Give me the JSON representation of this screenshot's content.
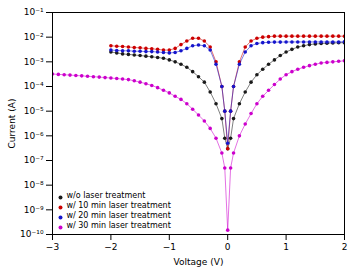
{
  "chart_data": {
    "type": "line",
    "xlabel": "Voltage (V)",
    "ylabel": "Current (A)",
    "xlim": [
      -3,
      2
    ],
    "ylim": [
      1e-10,
      0.1
    ],
    "xticks": [
      -3,
      -2,
      -1,
      0,
      1,
      2
    ],
    "yticks": [
      {
        "value": 1e-10,
        "label": "10⁻¹⁰"
      },
      {
        "value": 1e-09,
        "label": "10⁻⁹"
      },
      {
        "value": 1e-08,
        "label": "10⁻⁸"
      },
      {
        "value": 1e-07,
        "label": "10⁻⁷"
      },
      {
        "value": 1e-06,
        "label": "10⁻⁶"
      },
      {
        "value": 1e-05,
        "label": "10⁻⁵"
      },
      {
        "value": 0.0001,
        "label": "10⁻⁴"
      },
      {
        "value": 0.001,
        "label": "10⁻³"
      },
      {
        "value": 0.01,
        "label": "10⁻²"
      },
      {
        "value": 0.1,
        "label": "10⁻¹"
      }
    ],
    "log": "y",
    "grid": false,
    "legend": "lower left",
    "marker": "o",
    "line_style": "-",
    "series": [
      {
        "name": "w/o laser treatment",
        "color": "#1a1a1a",
        "x": [
          -2.0,
          -1.9,
          -1.8,
          -1.7,
          -1.6,
          -1.5,
          -1.4,
          -1.3,
          -1.2,
          -1.1,
          -1.0,
          -0.9,
          -0.8,
          -0.7,
          -0.6,
          -0.5,
          -0.4,
          -0.3,
          -0.2,
          -0.1,
          -0.05,
          0.0,
          0.05,
          0.1,
          0.2,
          0.3,
          0.4,
          0.5,
          0.6,
          0.7,
          0.8,
          0.9,
          1.0,
          1.1,
          1.2,
          1.3,
          1.4,
          1.5,
          1.6,
          1.7,
          1.8,
          1.9,
          2.0
        ],
        "values": [
          0.0025,
          0.0023,
          0.0021,
          0.002,
          0.0019,
          0.0018,
          0.0017,
          0.0016,
          0.0015,
          0.0014,
          0.0012,
          0.001,
          0.0008,
          0.0006,
          0.0004,
          0.00025,
          0.00015,
          6e-05,
          2e-05,
          5e-06,
          8e-07,
          3e-07,
          8e-07,
          5e-06,
          2e-05,
          6e-05,
          0.00015,
          0.0003,
          0.0005,
          0.0008,
          0.0012,
          0.0018,
          0.0025,
          0.0032,
          0.004,
          0.0045,
          0.005,
          0.0053,
          0.0055,
          0.0057,
          0.0058,
          0.0059,
          0.006
        ]
      },
      {
        "name": "w/ 10 min laser treatment",
        "color": "#cc0000",
        "x": [
          -2.0,
          -1.9,
          -1.8,
          -1.7,
          -1.6,
          -1.5,
          -1.4,
          -1.3,
          -1.2,
          -1.1,
          -1.0,
          -0.9,
          -0.8,
          -0.7,
          -0.6,
          -0.5,
          -0.4,
          -0.3,
          -0.2,
          -0.1,
          -0.05,
          0.0,
          0.05,
          0.1,
          0.2,
          0.3,
          0.4,
          0.5,
          0.6,
          0.7,
          0.8,
          0.9,
          1.0,
          1.1,
          1.2,
          1.3,
          1.4,
          1.5,
          1.6,
          1.7,
          1.8,
          1.9,
          2.0
        ],
        "values": [
          0.0045,
          0.0043,
          0.0042,
          0.004,
          0.0038,
          0.0037,
          0.0035,
          0.0034,
          0.0032,
          0.003,
          0.003,
          0.0035,
          0.005,
          0.007,
          0.009,
          0.009,
          0.007,
          0.004,
          0.001,
          0.0001,
          1e-05,
          3e-07,
          1e-05,
          0.0001,
          0.001,
          0.004,
          0.007,
          0.009,
          0.01,
          0.0105,
          0.011,
          0.011,
          0.011,
          0.011,
          0.011,
          0.011,
          0.011,
          0.011,
          0.011,
          0.011,
          0.011,
          0.011,
          0.011
        ]
      },
      {
        "name": "w/ 20 min laser treatment",
        "color": "#1515cc",
        "x": [
          -2.0,
          -1.9,
          -1.8,
          -1.7,
          -1.6,
          -1.5,
          -1.4,
          -1.3,
          -1.2,
          -1.1,
          -1.0,
          -0.9,
          -0.8,
          -0.7,
          -0.6,
          -0.5,
          -0.4,
          -0.3,
          -0.2,
          -0.1,
          -0.05,
          0.0,
          0.05,
          0.1,
          0.2,
          0.3,
          0.4,
          0.5,
          0.6,
          0.7,
          0.8,
          0.9,
          1.0,
          1.1,
          1.2,
          1.3,
          1.4,
          1.5,
          1.6,
          1.7,
          1.8,
          1.9,
          2.0
        ],
        "values": [
          0.003,
          0.0029,
          0.0028,
          0.0028,
          0.0027,
          0.0027,
          0.0026,
          0.0026,
          0.0025,
          0.0024,
          0.0023,
          0.0024,
          0.0028,
          0.0035,
          0.0045,
          0.0048,
          0.0045,
          0.003,
          0.0008,
          0.0001,
          1e-05,
          5e-07,
          1e-05,
          0.0001,
          0.0008,
          0.0025,
          0.0045,
          0.0055,
          0.006,
          0.0062,
          0.0063,
          0.0063,
          0.0064,
          0.0064,
          0.0064,
          0.0064,
          0.0064,
          0.0064,
          0.0064,
          0.0064,
          0.0064,
          0.0064,
          0.0065
        ]
      },
      {
        "name": "w/ 30 min laser treatment",
        "color": "#cc00cc",
        "x": [
          -3.0,
          -2.9,
          -2.8,
          -2.7,
          -2.6,
          -2.5,
          -2.4,
          -2.3,
          -2.2,
          -2.1,
          -2.0,
          -1.9,
          -1.8,
          -1.7,
          -1.6,
          -1.5,
          -1.4,
          -1.3,
          -1.2,
          -1.1,
          -1.0,
          -0.9,
          -0.8,
          -0.7,
          -0.6,
          -0.5,
          -0.4,
          -0.3,
          -0.2,
          -0.1,
          -0.05,
          0.0,
          0.05,
          0.1,
          0.2,
          0.3,
          0.4,
          0.5,
          0.6,
          0.7,
          0.8,
          0.9,
          1.0,
          1.1,
          1.2,
          1.3,
          1.4,
          1.5,
          1.6,
          1.7,
          1.8,
          1.9,
          2.0
        ],
        "values": [
          0.00032,
          0.00031,
          0.0003,
          0.00029,
          0.00028,
          0.00027,
          0.00026,
          0.00025,
          0.00024,
          0.00023,
          0.00022,
          0.00021,
          0.0002,
          0.00019,
          0.00017,
          0.00015,
          0.00013,
          0.00011,
          9e-05,
          7e-05,
          5.5e-05,
          4e-05,
          3e-05,
          2e-05,
          1.2e-05,
          7e-06,
          4e-06,
          2e-06,
          8e-07,
          2e-07,
          5e-08,
          1.5e-10,
          5e-08,
          2e-07,
          1e-06,
          3e-06,
          8e-06,
          2e-05,
          4e-05,
          7e-05,
          0.00012,
          0.0002,
          0.0003,
          0.0004,
          0.0005,
          0.0006,
          0.0007,
          0.0008,
          0.0009,
          0.00095,
          0.001,
          0.00105,
          0.0011
        ]
      }
    ]
  }
}
